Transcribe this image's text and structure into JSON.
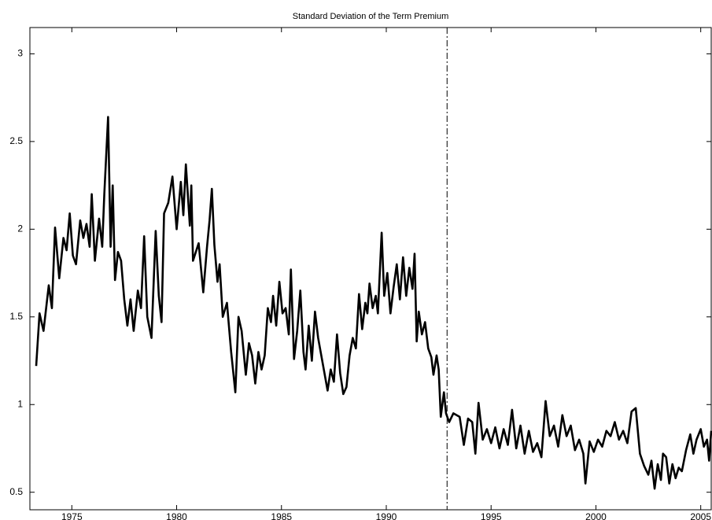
{
  "chart_data": {
    "type": "line",
    "title": "Standard Deviation of the Term Premium",
    "x": [
      1973.3,
      1973.46,
      1973.65,
      1973.9,
      1974.05,
      1974.2,
      1974.4,
      1974.6,
      1974.75,
      1974.9,
      1975.05,
      1975.2,
      1975.4,
      1975.55,
      1975.7,
      1975.85,
      1975.95,
      1976.1,
      1976.3,
      1976.45,
      1976.55,
      1976.73,
      1976.85,
      1976.95,
      1977.06,
      1977.2,
      1977.35,
      1977.5,
      1977.65,
      1977.8,
      1977.95,
      1978.15,
      1978.3,
      1978.45,
      1978.6,
      1978.8,
      1979.0,
      1979.15,
      1979.28,
      1979.4,
      1979.6,
      1979.8,
      1980.0,
      1980.2,
      1980.32,
      1980.44,
      1980.63,
      1980.7,
      1980.78,
      1981.05,
      1981.27,
      1981.45,
      1981.57,
      1981.68,
      1981.8,
      1981.95,
      1982.05,
      1982.2,
      1982.4,
      1982.6,
      1982.8,
      1982.95,
      1983.1,
      1983.3,
      1983.45,
      1983.6,
      1983.75,
      1983.9,
      1984.05,
      1984.2,
      1984.35,
      1984.5,
      1984.6,
      1984.75,
      1984.9,
      1985.05,
      1985.2,
      1985.35,
      1985.45,
      1985.6,
      1985.75,
      1985.9,
      1986.05,
      1986.15,
      1986.3,
      1986.45,
      1986.6,
      1986.75,
      1986.9,
      1987.05,
      1987.2,
      1987.35,
      1987.5,
      1987.65,
      1987.8,
      1987.95,
      1988.1,
      1988.25,
      1988.4,
      1988.55,
      1988.7,
      1988.85,
      1989.0,
      1989.1,
      1989.2,
      1989.35,
      1989.5,
      1989.6,
      1989.78,
      1989.9,
      1990.05,
      1990.2,
      1990.35,
      1990.5,
      1990.65,
      1990.8,
      1990.95,
      1991.1,
      1991.25,
      1991.35,
      1991.45,
      1991.55,
      1991.7,
      1991.85,
      1992.0,
      1992.15,
      1992.25,
      1992.4,
      1992.5,
      1992.6,
      1992.75,
      1992.85,
      1993.0,
      1993.2,
      1993.5,
      1993.7,
      1993.9,
      1994.1,
      1994.25,
      1994.4,
      1994.6,
      1994.8,
      1995.0,
      1995.2,
      1995.4,
      1995.6,
      1995.8,
      1996.0,
      1996.2,
      1996.4,
      1996.6,
      1996.8,
      1997.0,
      1997.2,
      1997.4,
      1997.6,
      1997.8,
      1998.0,
      1998.2,
      1998.4,
      1998.6,
      1998.8,
      1999.0,
      1999.2,
      1999.4,
      1999.5,
      1999.7,
      1999.9,
      2000.1,
      2000.3,
      2000.5,
      2000.7,
      2000.9,
      2001.1,
      2001.3,
      2001.5,
      2001.7,
      2001.9,
      2002.1,
      2002.3,
      2002.5,
      2002.65,
      2002.8,
      2002.95,
      2003.1,
      2003.2,
      2003.35,
      2003.5,
      2003.65,
      2003.8,
      2003.95,
      2004.1,
      2004.3,
      2004.5,
      2004.65,
      2004.8,
      2005.0,
      2005.15,
      2005.3,
      2005.4,
      2005.5
    ],
    "values": [
      1.22,
      1.52,
      1.42,
      1.68,
      1.55,
      2.01,
      1.72,
      1.95,
      1.88,
      2.09,
      1.85,
      1.8,
      2.05,
      1.95,
      2.03,
      1.9,
      2.2,
      1.82,
      2.06,
      1.9,
      2.2,
      2.64,
      1.9,
      2.25,
      1.71,
      1.87,
      1.82,
      1.6,
      1.45,
      1.6,
      1.42,
      1.65,
      1.55,
      1.96,
      1.5,
      1.38,
      1.99,
      1.62,
      1.47,
      2.09,
      2.15,
      2.3,
      2.0,
      2.27,
      2.08,
      2.37,
      2.02,
      2.25,
      1.82,
      1.92,
      1.64,
      1.9,
      2.05,
      2.23,
      1.91,
      1.7,
      1.8,
      1.5,
      1.58,
      1.3,
      1.07,
      1.5,
      1.42,
      1.17,
      1.35,
      1.28,
      1.12,
      1.3,
      1.2,
      1.28,
      1.55,
      1.47,
      1.62,
      1.45,
      1.7,
      1.52,
      1.55,
      1.4,
      1.77,
      1.26,
      1.42,
      1.65,
      1.3,
      1.2,
      1.45,
      1.25,
      1.53,
      1.38,
      1.28,
      1.18,
      1.08,
      1.2,
      1.13,
      1.4,
      1.18,
      1.06,
      1.1,
      1.28,
      1.38,
      1.32,
      1.63,
      1.43,
      1.58,
      1.52,
      1.69,
      1.55,
      1.62,
      1.52,
      1.98,
      1.62,
      1.75,
      1.52,
      1.67,
      1.8,
      1.6,
      1.84,
      1.62,
      1.78,
      1.66,
      1.86,
      1.36,
      1.53,
      1.4,
      1.47,
      1.32,
      1.27,
      1.17,
      1.28,
      1.2,
      0.93,
      1.07,
      0.95,
      0.9,
      0.95,
      0.93,
      0.77,
      0.92,
      0.9,
      0.72,
      1.01,
      0.8,
      0.86,
      0.78,
      0.87,
      0.75,
      0.86,
      0.77,
      0.97,
      0.75,
      0.88,
      0.72,
      0.85,
      0.73,
      0.78,
      0.7,
      1.02,
      0.82,
      0.88,
      0.76,
      0.94,
      0.82,
      0.88,
      0.74,
      0.8,
      0.72,
      0.55,
      0.79,
      0.73,
      0.8,
      0.76,
      0.85,
      0.82,
      0.9,
      0.8,
      0.85,
      0.78,
      0.96,
      0.98,
      0.72,
      0.65,
      0.6,
      0.68,
      0.52,
      0.66,
      0.57,
      0.72,
      0.7,
      0.55,
      0.66,
      0.58,
      0.64,
      0.62,
      0.74,
      0.83,
      0.72,
      0.8,
      0.86,
      0.76,
      0.8,
      0.68,
      0.85
    ],
    "color": "#000000",
    "xlim": [
      1973.0,
      2005.5
    ],
    "xticks": [
      1975,
      1980,
      1985,
      1990,
      1995,
      2000,
      2005
    ],
    "ylim": [
      0.4,
      3.15
    ],
    "yticks": [
      0.5,
      1,
      1.5,
      2,
      2.5,
      3
    ],
    "vline": 1992.9
  }
}
